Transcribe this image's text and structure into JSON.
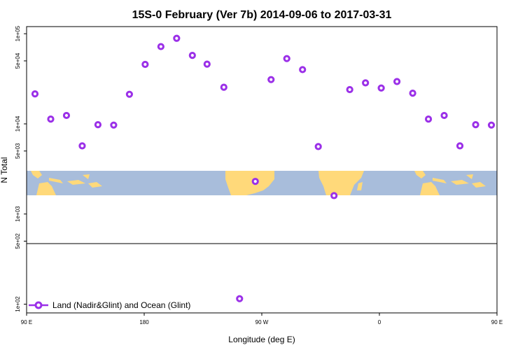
{
  "chart_data": {
    "type": "scatter",
    "title": "15S-0 February (Ver 7b)   2014-09-06 to 2017-03-31",
    "xlabel": "Longitude (deg E)",
    "ylabel": "N Total",
    "y_scale": "log",
    "ylim": [
      80,
      120000
    ],
    "x_axis": {
      "range_deg_east": [
        90,
        450
      ],
      "ticks": [
        {
          "value": 90,
          "label": "90 E"
        },
        {
          "value": 180,
          "label": "180"
        },
        {
          "value": 270,
          "label": "90 W"
        },
        {
          "value": 360,
          "label": "0"
        },
        {
          "value": 450,
          "label": "90 E"
        },
        {
          "value": 540,
          "label": "180"
        }
      ]
    },
    "y_ticks": [
      {
        "value": 100,
        "label": "1e+02"
      },
      {
        "value": 500,
        "label": "5e+02"
      },
      {
        "value": 1000,
        "label": "1e+03"
      },
      {
        "value": 5000,
        "label": "5e+03"
      },
      {
        "value": 10000,
        "label": "1e+04"
      },
      {
        "value": 50000,
        "label": "5e+04"
      },
      {
        "value": 100000,
        "label": "1e+05"
      }
    ],
    "legend": {
      "position": "bottom-left",
      "label": "Land (Nadir&Glint) and Ocean (Glint)"
    },
    "series": [
      {
        "name": "Land (Nadir&Glint) and Ocean (Glint)",
        "color": "#9b30e8",
        "marker": "open-circle",
        "x": [
          100,
          115,
          130,
          145,
          160,
          175,
          190,
          205,
          220,
          235,
          250,
          264,
          280,
          295,
          310,
          325,
          340,
          355,
          370,
          385,
          400,
          415,
          430,
          445,
          460,
          475,
          490,
          505,
          520,
          535
        ],
        "y": [
          21500,
          11300,
          12400,
          5700,
          9800,
          9700,
          21300,
          45700,
          72000,
          89000,
          57500,
          46000,
          25500,
          115,
          2300,
          31000,
          53000,
          40000,
          5600,
          1600,
          24000,
          28500,
          25000,
          29500,
          21900,
          11300,
          12400,
          5700,
          9800,
          9700
        ]
      }
    ]
  },
  "colors": {
    "marker": "#9b30e8",
    "ocean": "#a8bddb",
    "land": "#ffd97a",
    "background": "#ffffff",
    "axis": "#000000"
  }
}
